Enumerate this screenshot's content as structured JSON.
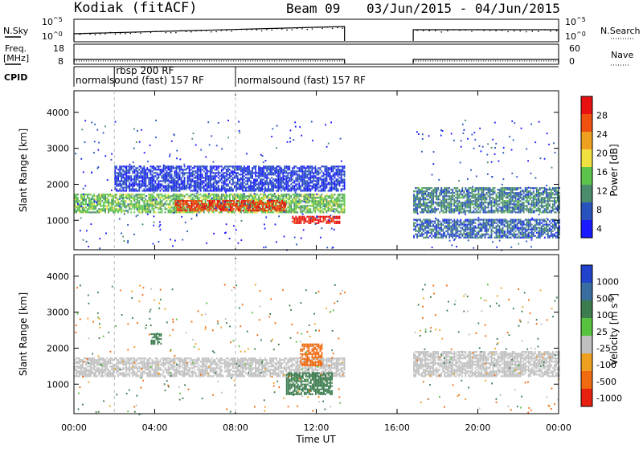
{
  "title": {
    "station": "Kodiak (fitACF)",
    "beam": "Beam 09",
    "dates": "03/Jun/2015 - 04/Jun/2015"
  },
  "summary": {
    "nsky": {
      "label": "N.Sky",
      "ticks": [
        "10^5",
        "10^0"
      ],
      "right_label": "N.Search",
      "right_ticks": [
        "10^5",
        "10^0"
      ]
    },
    "freq": {
      "label": "Freq.",
      "unit": "[MHz]",
      "ticks": [
        "18",
        "8"
      ],
      "right_label": "Nave",
      "right_ticks": [
        "60",
        "0"
      ]
    },
    "cpid": {
      "label": "CPID",
      "entries": [
        {
          "text": "normalsound (fast) 157 RF",
          "start_h": 0.0,
          "row": "lower"
        },
        {
          "text": "rbsp 200 RF",
          "start_h": 2.0,
          "row": "upper"
        },
        {
          "text": "normalsound (fast) 157 RF",
          "start_h": 8.0,
          "row": "lower"
        }
      ]
    }
  },
  "x_axis": {
    "label": "Time UT",
    "ticks": [
      "00:00",
      "04:00",
      "08:00",
      "12:00",
      "16:00",
      "20:00",
      "00:00"
    ],
    "tick_hours": [
      0,
      4,
      8,
      12,
      16,
      20,
      24
    ]
  },
  "power_colorbar": {
    "label": "Power [dB]",
    "ticks": [
      "28",
      "24",
      "20",
      "16",
      "12",
      "8",
      "4"
    ],
    "tick_values": [
      28,
      24,
      20,
      16,
      12,
      8,
      4
    ],
    "colors": [
      "#1a1aff",
      "#2a52be",
      "#4a8c6b",
      "#5cc44a",
      "#f0e040",
      "#f0a020",
      "#f05010",
      "#e81010"
    ]
  },
  "velocity_colorbar": {
    "label": "Velocity [m s^-1]",
    "label_main": "Velocity",
    "label_unit_left": "[m s",
    "label_unit_exp": "-1",
    "label_unit_right": "]",
    "ticks": [
      "1000",
      "500",
      "100",
      "25",
      "-25",
      "-100",
      "-500",
      "-1000"
    ],
    "colors": [
      "#2244cc",
      "#3a6ea0",
      "#3c7c4e",
      "#57c23d",
      "#c0c0c0",
      "#f0a020",
      "#f06a10",
      "#e82010"
    ]
  },
  "chart_data": [
    {
      "type": "heatmap",
      "title": "",
      "xlabel": "Time UT",
      "ylabel": "Slant Range [km]",
      "xlim_hours": [
        0,
        24
      ],
      "ylim_km": [
        180,
        4600
      ],
      "yticks": [
        1000,
        2000,
        3000,
        4000
      ],
      "data_gap_hours": [
        13.4,
        16.8
      ],
      "color_scale": "Power [dB]",
      "range": [
        4,
        30
      ],
      "bands": [
        {
          "t_start": 0.0,
          "t_end": 13.4,
          "range_km": [
            1200,
            1700
          ],
          "power_db": 16
        },
        {
          "t_start": 5.0,
          "t_end": 10.5,
          "range_km": [
            1250,
            1550
          ],
          "power_db": 28
        },
        {
          "t_start": 10.8,
          "t_end": 13.2,
          "range_km": [
            900,
            1100
          ],
          "power_db": 30
        },
        {
          "t_start": 2.0,
          "t_end": 13.4,
          "range_km": [
            1800,
            2500
          ],
          "power_db": 8
        },
        {
          "t_start": 16.8,
          "t_end": 24.0,
          "range_km": [
            1200,
            1900
          ],
          "power_db": 12
        },
        {
          "t_start": 16.8,
          "t_end": 24.0,
          "range_km": [
            500,
            1000
          ],
          "power_db": 10
        }
      ]
    },
    {
      "type": "heatmap",
      "title": "",
      "xlabel": "Time UT",
      "ylabel": "Slant Range [km]",
      "xlim_hours": [
        0,
        24
      ],
      "ylim_km": [
        180,
        4600
      ],
      "yticks": [
        1000,
        2000,
        3000,
        4000
      ],
      "data_gap_hours": [
        13.4,
        16.8
      ],
      "color_scale": "Velocity [m s^-1]",
      "range": [
        -1000,
        1000
      ],
      "bands": [
        {
          "t_start": 0.0,
          "t_end": 13.4,
          "range_km": [
            1200,
            1700
          ],
          "velocity_mps": 0
        },
        {
          "t_start": 10.5,
          "t_end": 12.8,
          "range_km": [
            700,
            1300
          ],
          "velocity_mps": 100
        },
        {
          "t_start": 11.2,
          "t_end": 12.3,
          "range_km": [
            1500,
            2100
          ],
          "velocity_mps": -200
        },
        {
          "t_start": 3.8,
          "t_end": 4.3,
          "range_km": [
            2100,
            2400
          ],
          "velocity_mps": 100
        },
        {
          "t_start": 16.8,
          "t_end": 24.0,
          "range_km": [
            1200,
            1900
          ],
          "velocity_mps": 0
        }
      ]
    }
  ]
}
